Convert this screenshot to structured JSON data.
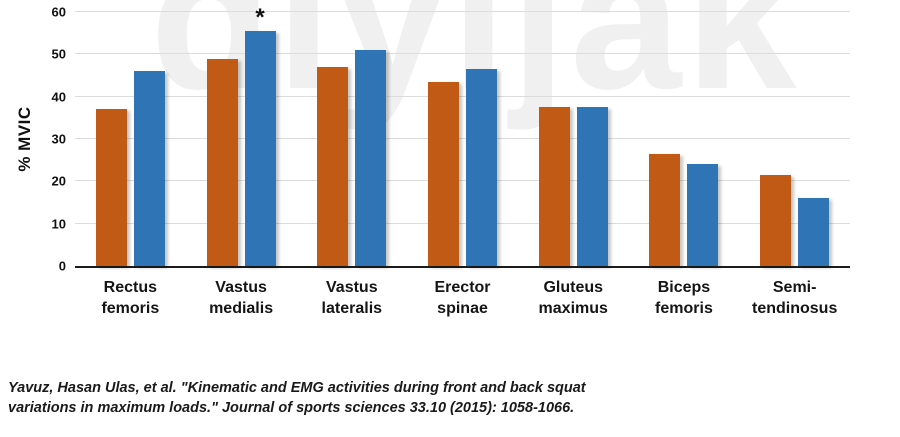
{
  "watermark": "diyijak",
  "chart_data": {
    "type": "bar",
    "title": "",
    "xlabel": "",
    "ylabel": "% MVIC",
    "ylim": [
      0,
      60
    ],
    "yticks": [
      0,
      10,
      20,
      30,
      40,
      50,
      60
    ],
    "grid": "horizontal",
    "legend_position": "none",
    "categories": [
      "Rectus\nfemoris",
      "Vastus\nmedialis",
      "Vastus\nlateralis",
      "Erector\nspinae",
      "Gluteus\nmaximus",
      "Biceps\nfemoris",
      "Semi-\ntendinosus"
    ],
    "series": [
      {
        "name": "orange",
        "color": "#C05A14",
        "values": [
          37,
          49,
          47,
          43.5,
          37.5,
          26.5,
          21.5
        ]
      },
      {
        "name": "blue",
        "color": "#2F74B5",
        "values": [
          46,
          55.5,
          51,
          46.5,
          37.5,
          24,
          16
        ]
      }
    ],
    "annotations": [
      {
        "text": "*",
        "category_index": 1,
        "series_index": 1
      }
    ]
  },
  "citation": "Yavuz, Hasan Ulas, et al. \"Kinematic and EMG activities during front and back squat\nvariations in maximum loads.\" Journal of sports sciences 33.10 (2015): 1058-1066."
}
